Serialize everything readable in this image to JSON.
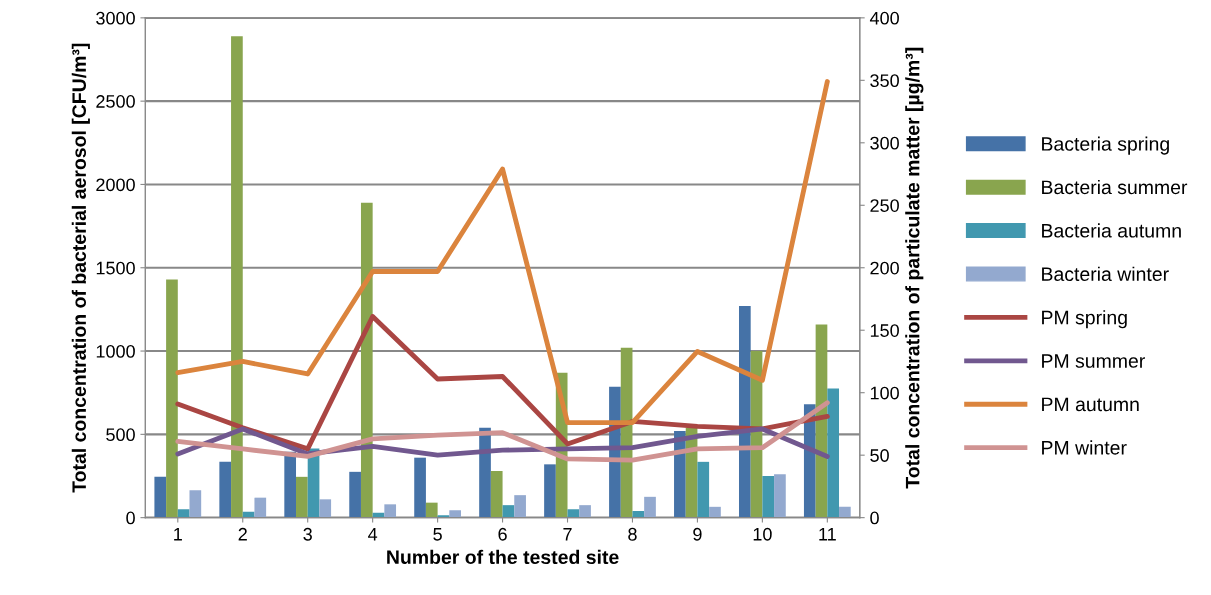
{
  "chart_data": {
    "type": "bar",
    "xlabel": "Number of the tested site",
    "ylabel": "Total concentration of bacterial aerosol [CFU/m³]",
    "y2label": "Total concentration of particulate matter [µg/m³]",
    "categories": [
      "1",
      "2",
      "3",
      "4",
      "5",
      "6",
      "7",
      "8",
      "9",
      "10",
      "11"
    ],
    "series": [
      {
        "name": "Bacteria spring",
        "color": "#4572a7",
        "values": [
          245,
          335,
          395,
          275,
          360,
          540,
          320,
          785,
          520,
          1270,
          680
        ]
      },
      {
        "name": "Bacteria summer",
        "color": "#89a54e",
        "values": [
          1430,
          2890,
          245,
          1890,
          90,
          280,
          870,
          1020,
          540,
          1000,
          1160
        ]
      },
      {
        "name": "Bacteria autumn",
        "color": "#4198af",
        "values": [
          50,
          35,
          415,
          30,
          15,
          75,
          50,
          40,
          335,
          250,
          775
        ]
      },
      {
        "name": "Bacteria winter",
        "color": "#93a9cf",
        "values": [
          165,
          120,
          110,
          80,
          45,
          135,
          75,
          125,
          65,
          260,
          65
        ]
      },
      {
        "name": "PM spring",
        "type": "line",
        "axis": "y2",
        "color": "#aa4643",
        "values": [
          91,
          72,
          55,
          161,
          111,
          113,
          59,
          77,
          73,
          71,
          81
        ]
      },
      {
        "name": "PM summer",
        "type": "line",
        "axis": "y2",
        "color": "#71588f",
        "values": [
          51,
          71,
          51,
          57,
          50,
          54,
          55,
          56,
          65,
          71,
          49
        ]
      },
      {
        "name": "PM autumn",
        "type": "line",
        "axis": "y2",
        "color": "#db843d",
        "values": [
          116,
          125,
          115,
          197,
          197,
          279,
          76,
          76,
          133,
          110,
          349
        ]
      },
      {
        "name": "PM winter",
        "type": "line",
        "axis": "y2",
        "color": "#d09392",
        "values": [
          61,
          55,
          49,
          63,
          66,
          68,
          47,
          46,
          55,
          56,
          92
        ]
      }
    ],
    "ylim": [
      0,
      3000
    ],
    "yticks": [
      0,
      500,
      1000,
      1500,
      2000,
      2500,
      3000
    ],
    "y2lim": [
      0,
      400
    ],
    "y2ticks": [
      0,
      50,
      100,
      150,
      200,
      250,
      300,
      350,
      400
    ],
    "grid": "y",
    "legend": "right",
    "marker": "none",
    "line_style": "solid"
  }
}
